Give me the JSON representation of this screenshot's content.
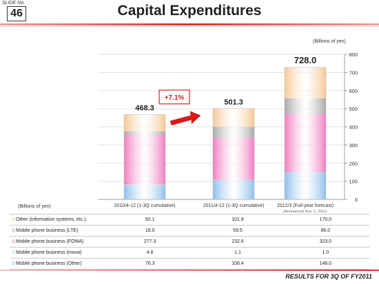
{
  "slide": {
    "label": "SLIDE No.",
    "number": "46"
  },
  "title": "Capital Expenditures",
  "footer": "RESULTS FOR 3Q OF FY2011",
  "chart_data": {
    "type": "bar",
    "stacked": true,
    "unit_label": "(Billions of yen)",
    "row_header": "(Billions of yen)",
    "ylim": [
      0,
      800
    ],
    "yticks": [
      0,
      100,
      200,
      300,
      400,
      500,
      600,
      700,
      800
    ],
    "categories": [
      "2010/4-12 (1-3Q cumulative)",
      "2011/4-12 (1-3Q cumulative)",
      "2012/3 (Full-year forecast)"
    ],
    "category_notes": [
      "",
      "",
      "(Announced Nov. 2, 2011)"
    ],
    "totals": [
      "468.3",
      "501.3",
      "728.0"
    ],
    "annotation": "+7.1%",
    "series": [
      {
        "name": "Other (information systems, etc.)",
        "values": [
          92.1,
          101.8,
          170.0
        ],
        "labels": [
          "92.1",
          "101.8",
          "170.0"
        ],
        "color": "#f7c896"
      },
      {
        "name": "Mobile phone business (LTE)",
        "values": [
          18.0,
          59.5,
          86.0
        ],
        "labels": [
          "18.0",
          "59.5",
          "86.0"
        ],
        "color": "#a9a9a9"
      },
      {
        "name": "Mobile phone business (FOMA)",
        "values": [
          277.3,
          232.6,
          323.0
        ],
        "labels": [
          "277.3",
          "232.6",
          "323.0"
        ],
        "color": "#f07ec0"
      },
      {
        "name": "Mobile phone business (mova)",
        "values": [
          4.6,
          1.1,
          1.0
        ],
        "labels": [
          "4.6",
          "1.1",
          "1.0"
        ],
        "color": "#a8e0c8"
      },
      {
        "name": "Mobile phone business (Other)",
        "values": [
          76.3,
          106.4,
          148.0
        ],
        "labels": [
          "76.3",
          "106.4",
          "148.0"
        ],
        "color": "#8dc0ec"
      }
    ]
  }
}
